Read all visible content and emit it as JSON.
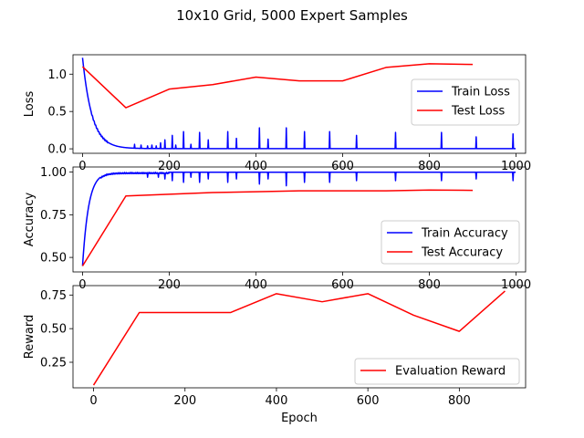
{
  "title": "10x10 Grid, 5000 Expert Samples",
  "chart_data": [
    {
      "type": "line",
      "ylabel": "Loss",
      "xlabel": "",
      "xlim": [
        -22,
        1022
      ],
      "ylim": [
        -0.06,
        1.26
      ],
      "xticks": [
        0,
        200,
        400,
        600,
        800,
        1000
      ],
      "yticks": [
        0.0,
        0.5,
        1.0
      ],
      "ytick_labels": [
        "0.0",
        "0.5",
        "1.0"
      ],
      "legend_position": "right",
      "series": [
        {
          "name": "Train Loss",
          "color": "#0000ff",
          "kind": "train_loss",
          "params": {
            "start": 1.22,
            "decay": 22,
            "floor": 0.003
          },
          "spikes": [
            [
              120,
              0.06
            ],
            [
              135,
              0.05
            ],
            [
              150,
              0.04
            ],
            [
              160,
              0.05
            ],
            [
              170,
              0.04
            ],
            [
              180,
              0.08
            ],
            [
              190,
              0.12
            ],
            [
              207,
              0.18
            ],
            [
              215,
              0.05
            ],
            [
              233,
              0.23
            ],
            [
              250,
              0.06
            ],
            [
              270,
              0.22
            ],
            [
              290,
              0.12
            ],
            [
              335,
              0.23
            ],
            [
              355,
              0.14
            ],
            [
              408,
              0.28
            ],
            [
              428,
              0.13
            ],
            [
              470,
              0.28
            ],
            [
              512,
              0.23
            ],
            [
              570,
              0.23
            ],
            [
              632,
              0.18
            ],
            [
              722,
              0.22
            ],
            [
              828,
              0.22
            ],
            [
              908,
              0.16
            ],
            [
              993,
              0.2
            ]
          ]
        },
        {
          "name": "Test Loss",
          "color": "#ff0000",
          "kind": "points",
          "x": [
            0,
            100,
            200,
            300,
            400,
            500,
            600,
            700,
            800,
            900
          ],
          "y": [
            1.1,
            0.55,
            0.8,
            0.86,
            0.96,
            0.91,
            0.91,
            1.09,
            1.14,
            1.13
          ]
        }
      ]
    },
    {
      "type": "line",
      "ylabel": "Accuracy",
      "xlabel": "",
      "xlim": [
        -22,
        1022
      ],
      "ylim": [
        0.415,
        1.03
      ],
      "xticks": [
        0,
        200,
        400,
        600,
        800,
        1000
      ],
      "yticks": [
        0.5,
        0.75,
        1.0
      ],
      "ytick_labels": [
        "0.50",
        "0.75",
        "1.00"
      ],
      "legend_position": "lower right",
      "series": [
        {
          "name": "Train Accuracy",
          "color": "#0000ff",
          "kind": "train_acc",
          "params": {
            "start": 0.45,
            "decay": 14,
            "ceil": 0.999
          },
          "spikes": [
            [
              150,
              0.97
            ],
            [
              175,
              0.97
            ],
            [
              190,
              0.96
            ],
            [
              207,
              0.95
            ],
            [
              233,
              0.94
            ],
            [
              250,
              0.97
            ],
            [
              270,
              0.94
            ],
            [
              290,
              0.96
            ],
            [
              335,
              0.94
            ],
            [
              355,
              0.96
            ],
            [
              408,
              0.93
            ],
            [
              428,
              0.96
            ],
            [
              470,
              0.92
            ],
            [
              512,
              0.94
            ],
            [
              570,
              0.94
            ],
            [
              632,
              0.95
            ],
            [
              722,
              0.95
            ],
            [
              828,
              0.95
            ],
            [
              908,
              0.96
            ],
            [
              993,
              0.95
            ]
          ]
        },
        {
          "name": "Test Accuracy",
          "color": "#ff0000",
          "kind": "points",
          "x": [
            0,
            100,
            200,
            300,
            400,
            500,
            600,
            700,
            800,
            900
          ],
          "y": [
            0.45,
            0.86,
            0.87,
            0.88,
            0.885,
            0.89,
            0.89,
            0.89,
            0.895,
            0.893
          ]
        }
      ]
    },
    {
      "type": "line",
      "ylabel": "Reward",
      "xlabel": "Epoch",
      "xlim": [
        -45,
        945
      ],
      "ylim": [
        0.06,
        0.82
      ],
      "xticks": [
        0,
        200,
        400,
        600,
        800
      ],
      "yticks": [
        0.25,
        0.5,
        0.75
      ],
      "ytick_labels": [
        "0.25",
        "0.50",
        "0.75"
      ],
      "legend_position": "lower right",
      "series": [
        {
          "name": "Evaluation Reward",
          "color": "#ff0000",
          "kind": "points",
          "x": [
            0,
            100,
            200,
            300,
            400,
            500,
            600,
            700,
            800,
            900
          ],
          "y": [
            0.08,
            0.62,
            0.62,
            0.62,
            0.76,
            0.7,
            0.76,
            0.6,
            0.48,
            0.78
          ]
        }
      ]
    }
  ]
}
